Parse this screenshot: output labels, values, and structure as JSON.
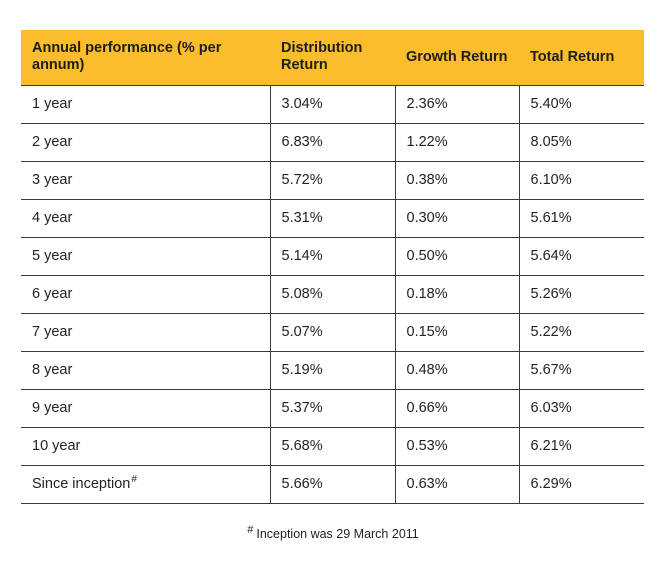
{
  "table": {
    "headers": [
      "Annual performance (% per annum)",
      "Distribution Return",
      "Growth Return",
      "Total Return"
    ],
    "rows": [
      {
        "period": "1 year",
        "distribution": "3.04%",
        "growth": "2.36%",
        "total": "5.40%"
      },
      {
        "period": "2 year",
        "distribution": "6.83%",
        "growth": "1.22%",
        "total": "8.05%"
      },
      {
        "period": "3 year",
        "distribution": "5.72%",
        "growth": "0.38%",
        "total": "6.10%"
      },
      {
        "period": "4 year",
        "distribution": "5.31%",
        "growth": "0.30%",
        "total": "5.61%"
      },
      {
        "period": "5 year",
        "distribution": "5.14%",
        "growth": "0.50%",
        "total": "5.64%"
      },
      {
        "period": "6 year",
        "distribution": "5.08%",
        "growth": "0.18%",
        "total": "5.26%"
      },
      {
        "period": "7 year",
        "distribution": "5.07%",
        "growth": "0.15%",
        "total": "5.22%"
      },
      {
        "period": "8 year",
        "distribution": "5.19%",
        "growth": "0.48%",
        "total": "5.67%"
      },
      {
        "period": "9 year",
        "distribution": "5.37%",
        "growth": "0.66%",
        "total": "6.03%"
      },
      {
        "period": "10 year",
        "distribution": "5.68%",
        "growth": "0.53%",
        "total": "6.21%"
      },
      {
        "period": "Since inception",
        "distribution": "5.66%",
        "growth": "0.63%",
        "total": "6.29%"
      }
    ],
    "since_inception_mark": "#"
  },
  "footnote": {
    "mark": "#",
    "text": "Inception was 29 March 2011"
  },
  "colors": {
    "header_background": "#fbbd2b",
    "rule": "#3a3a3a"
  }
}
